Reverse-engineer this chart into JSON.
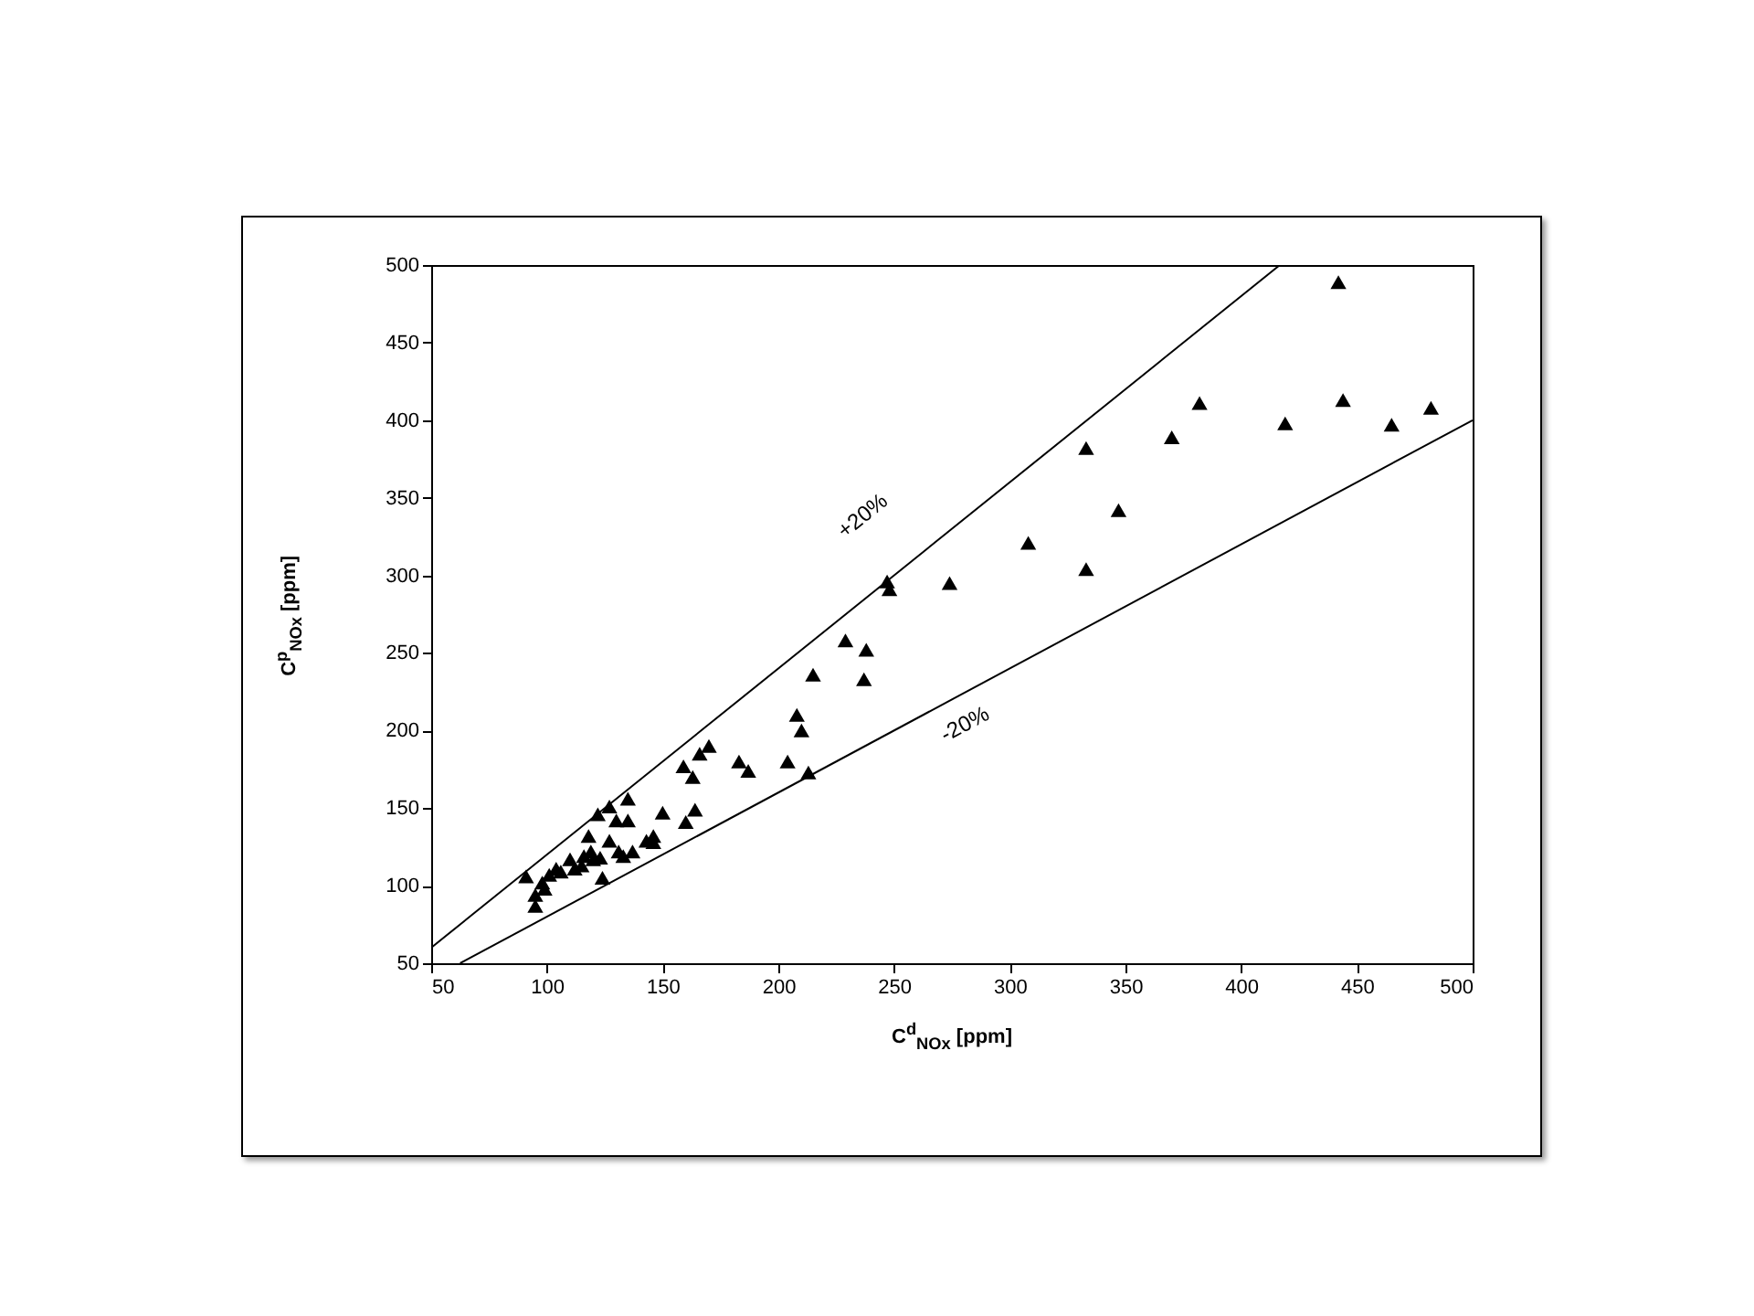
{
  "chart_data": {
    "type": "scatter",
    "xlabel": "C$^{d}$$_{NOx}$ [ppm]",
    "ylabel": "C$^{p}$$_{NOx}$ [ppm]",
    "xlim": [
      50,
      500
    ],
    "ylim": [
      50,
      500
    ],
    "xticks": [
      50,
      100,
      150,
      200,
      250,
      300,
      350,
      400,
      450,
      500
    ],
    "yticks": [
      50,
      100,
      150,
      200,
      250,
      300,
      350,
      400,
      450,
      500
    ],
    "grid": false,
    "series": [
      {
        "marker": "triangle",
        "color": "#000000",
        "x": [
          91,
          95,
          95,
          98,
          99,
          101,
          104,
          106,
          110,
          112,
          115,
          116,
          118,
          119,
          122,
          120,
          123,
          124,
          127,
          127,
          130,
          131,
          133,
          135,
          135,
          137,
          143,
          146,
          146,
          150,
          159,
          160,
          163,
          164,
          166,
          170,
          183,
          187,
          204,
          208,
          210,
          213,
          229,
          238,
          237,
          215,
          247,
          248,
          274,
          308,
          333,
          333,
          347,
          382,
          370,
          442,
          444,
          419,
          465,
          482
        ],
        "values": [
          106,
          94,
          87,
          102,
          98,
          107,
          111,
          109,
          117,
          111,
          113,
          119,
          132,
          122,
          146,
          117,
          118,
          105,
          151,
          129,
          142,
          122,
          119,
          156,
          142,
          122,
          129,
          132,
          128,
          147,
          177,
          141,
          170,
          149,
          185,
          190,
          180,
          174,
          180,
          210,
          200,
          173,
          258,
          252,
          233,
          236,
          296,
          291,
          295,
          321,
          382,
          304,
          342,
          411,
          389,
          489,
          413,
          398,
          397,
          408
        ]
      },
      {
        "type": "line",
        "color": "#000000",
        "x": [
          50,
          416.7
        ],
        "values": [
          60,
          500
        ]
      },
      {
        "type": "line",
        "color": "#000000",
        "x": [
          62.5,
          500
        ],
        "values": [
          50,
          400
        ]
      }
    ],
    "annotations": [
      "+20%",
      "-20%"
    ]
  }
}
